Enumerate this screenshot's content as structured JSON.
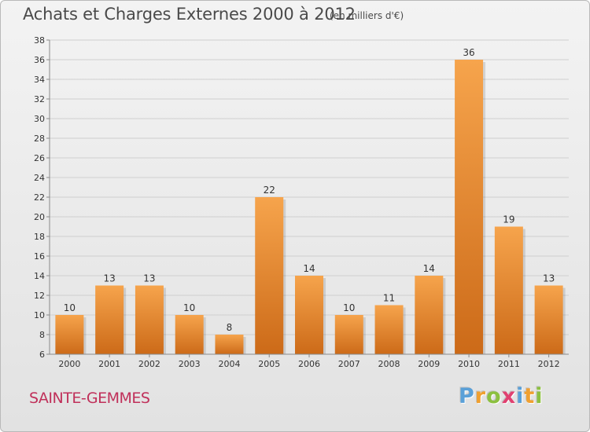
{
  "header": {
    "title": "Achats et Charges Externes 2000 à 2012",
    "unit": "(en milliers d'€)"
  },
  "footer": {
    "commune": "SAINTE-GEMMES",
    "brand": "Proxiti",
    "brand_letters": [
      "P",
      "r",
      "o",
      "x",
      "i",
      "t",
      "i"
    ],
    "brand_colors": [
      "#5aa0d8",
      "#f0a030",
      "#8cc040",
      "#e04070",
      "#5aa0d8",
      "#f0a030",
      "#8cc040"
    ]
  },
  "chart_data": {
    "type": "bar",
    "title": "Achats et Charges Externes 2000 à 2012",
    "subtitle": "(en milliers d'€)",
    "categories": [
      "2000",
      "2001",
      "2002",
      "2003",
      "2004",
      "2005",
      "2006",
      "2007",
      "2008",
      "2009",
      "2010",
      "2011",
      "2012"
    ],
    "values": [
      10,
      13,
      13,
      10,
      8,
      22,
      14,
      10,
      11,
      14,
      36,
      19,
      13
    ],
    "ylim": [
      6,
      38
    ],
    "yticks": [
      6,
      8,
      10,
      12,
      14,
      16,
      18,
      20,
      22,
      24,
      26,
      28,
      30,
      32,
      34,
      36,
      38
    ],
    "grid": true,
    "colors": {
      "bar_light": "#f6a44c",
      "bar_dark": "#cc6a18",
      "grid": "#cfcfcf",
      "axis": "#8a8a8a",
      "text": "#333333"
    }
  }
}
